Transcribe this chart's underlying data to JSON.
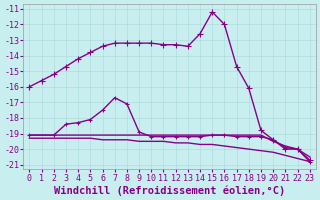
{
  "xlabel": "Windchill (Refroidissement éolien,°C)",
  "background_color": "#c8eef0",
  "grid_color": "#b0dde0",
  "line_color": "#880088",
  "xlim": [
    -0.5,
    23.5
  ],
  "ylim": [
    -21.3,
    -10.7
  ],
  "xticks": [
    0,
    1,
    2,
    3,
    4,
    5,
    6,
    7,
    8,
    9,
    10,
    11,
    12,
    13,
    14,
    15,
    16,
    17,
    18,
    19,
    20,
    21,
    22,
    23
  ],
  "yticks": [
    -11,
    -12,
    -13,
    -14,
    -15,
    -16,
    -17,
    -18,
    -19,
    -20,
    -21
  ],
  "lines": [
    {
      "x": [
        0,
        1,
        2,
        3,
        4,
        5,
        6,
        7,
        8,
        9,
        10,
        11,
        12,
        13,
        14,
        15,
        16,
        17,
        18,
        19,
        20,
        21,
        22,
        23
      ],
      "y": [
        -16.0,
        -15.6,
        -15.2,
        -14.7,
        -14.2,
        -13.8,
        -13.4,
        -13.2,
        -13.2,
        -13.2,
        -13.2,
        -13.3,
        -13.3,
        -13.4,
        -12.6,
        -11.2,
        -12.0,
        -14.7,
        -16.1,
        -18.8,
        -19.4,
        -20.0,
        -20.0,
        -20.7
      ],
      "with_marker": true,
      "marker": "+",
      "markersize": 4,
      "linewidth": 1.0
    },
    {
      "x": [
        0,
        2,
        3,
        4,
        5,
        6,
        7,
        8,
        9,
        10,
        11,
        12,
        13,
        14,
        15,
        16,
        17,
        18,
        19,
        20,
        21,
        22,
        23
      ],
      "y": [
        -19.1,
        -19.1,
        -18.4,
        -18.3,
        -18.1,
        -17.5,
        -16.7,
        -17.1,
        -18.9,
        -19.2,
        -19.2,
        -19.2,
        -19.2,
        -19.2,
        -19.1,
        -19.1,
        -19.2,
        -19.2,
        -19.2,
        -19.4,
        -19.9,
        -20.0,
        -20.8
      ],
      "with_marker": true,
      "marker": "+",
      "markersize": 3,
      "linewidth": 1.0
    },
    {
      "x": [
        0,
        1,
        2,
        3,
        4,
        5,
        6,
        7,
        8,
        9,
        10,
        11,
        12,
        13,
        14,
        15,
        16,
        17,
        18,
        19,
        20,
        21,
        22,
        23
      ],
      "y": [
        -19.3,
        -19.3,
        -19.3,
        -19.3,
        -19.3,
        -19.3,
        -19.4,
        -19.4,
        -19.4,
        -19.5,
        -19.5,
        -19.5,
        -19.6,
        -19.6,
        -19.7,
        -19.7,
        -19.8,
        -19.9,
        -20.0,
        -20.1,
        -20.2,
        -20.4,
        -20.6,
        -20.8
      ],
      "with_marker": false,
      "marker": null,
      "markersize": 0,
      "linewidth": 1.0
    },
    {
      "x": [
        0,
        1,
        2,
        3,
        4,
        5,
        6,
        7,
        8,
        9,
        10,
        11,
        12,
        13,
        14,
        15,
        16,
        17,
        18,
        19,
        20,
        21,
        22,
        23
      ],
      "y": [
        -19.1,
        -19.1,
        -19.1,
        -19.1,
        -19.1,
        -19.1,
        -19.1,
        -19.1,
        -19.1,
        -19.1,
        -19.1,
        -19.1,
        -19.1,
        -19.1,
        -19.1,
        -19.1,
        -19.1,
        -19.1,
        -19.1,
        -19.1,
        -19.5,
        -19.8,
        -20.0,
        -20.5
      ],
      "with_marker": false,
      "marker": null,
      "markersize": 0,
      "linewidth": 1.0
    }
  ],
  "tick_fontsize": 6.0,
  "label_fontsize": 7.5
}
